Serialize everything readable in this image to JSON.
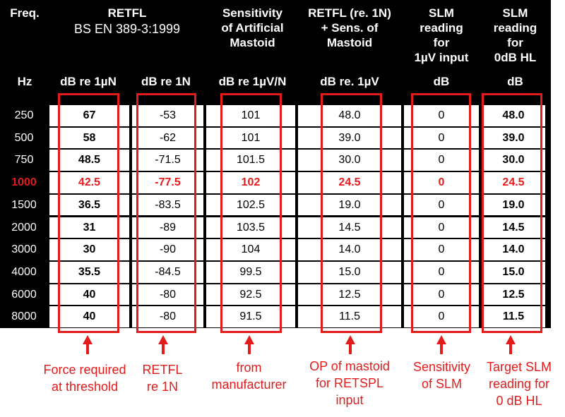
{
  "header": {
    "freq": "Freq.",
    "retfl_title": "RETFL",
    "retfl_std": "BS EN 389-3:1999",
    "sensitivity": "Sensitivity\nof Artificial\nMastoid",
    "retfl_sens": "RETFL (re. 1N)\n+ Sens. of\nMastoid",
    "slm_1uv": "SLM\nreading\nfor\n1µV input",
    "slm_0db": "SLM\nreading\nfor\n0dB HL"
  },
  "units": {
    "hz": "Hz",
    "db_re_1un": "dB  re 1µN",
    "db_re_1n": "dB re 1N",
    "db_re_1uvn": "dB re 1µV/N",
    "db_re_1uv": "dB re. 1µV",
    "db1": "dB",
    "db2": "dB"
  },
  "rows": [
    {
      "freq": "250",
      "force": "67",
      "retfl": "-53",
      "sens": "101",
      "op": "48.0",
      "slm": "0",
      "target": "48.0"
    },
    {
      "freq": "500",
      "force": "58",
      "retfl": "-62",
      "sens": "101",
      "op": "39.0",
      "slm": "0",
      "target": "39.0"
    },
    {
      "freq": "750",
      "force": "48.5",
      "retfl": "-71.5",
      "sens": "101.5",
      "op": "30.0",
      "slm": "0",
      "target": "30.0"
    },
    {
      "freq": "1000",
      "force": "42.5",
      "retfl": "-77.5",
      "sens": "102",
      "op": "24.5",
      "slm": "0",
      "target": "24.5"
    },
    {
      "freq": "1500",
      "force": "36.5",
      "retfl": "-83.5",
      "sens": "102.5",
      "op": "19.0",
      "slm": "0",
      "target": "19.0"
    },
    {
      "freq": "2000",
      "force": "31",
      "retfl": "-89",
      "sens": "103.5",
      "op": "14.5",
      "slm": "0",
      "target": "14.5"
    },
    {
      "freq": "3000",
      "force": "30",
      "retfl": "-90",
      "sens": "104",
      "op": "14.0",
      "slm": "0",
      "target": "14.0"
    },
    {
      "freq": "4000",
      "force": "35.5",
      "retfl": "-84.5",
      "sens": "99.5",
      "op": "15.0",
      "slm": "0",
      "target": "15.0"
    },
    {
      "freq": "6000",
      "force": "40",
      "retfl": "-80",
      "sens": "92.5",
      "op": "12.5",
      "slm": "0",
      "target": "12.5"
    },
    {
      "freq": "8000",
      "force": "40",
      "retfl": "-80",
      "sens": "91.5",
      "op": "11.5",
      "slm": "0",
      "target": "11.5"
    }
  ],
  "highlight_row_freq": "1000",
  "annotations": {
    "force": "Force required\nat threshold",
    "retfl": "RETFL\nre 1N",
    "manufacturer": "from\nmanufacturer",
    "op": "OP of mastoid\nfor RETSPL\ninput",
    "sensitivity": "Sensitivity\nof SLM",
    "target": "Target SLM\nreading for\n0 dB HL"
  },
  "colors": {
    "header_bg": "#000000",
    "annotation_red": "#e31b1b"
  }
}
